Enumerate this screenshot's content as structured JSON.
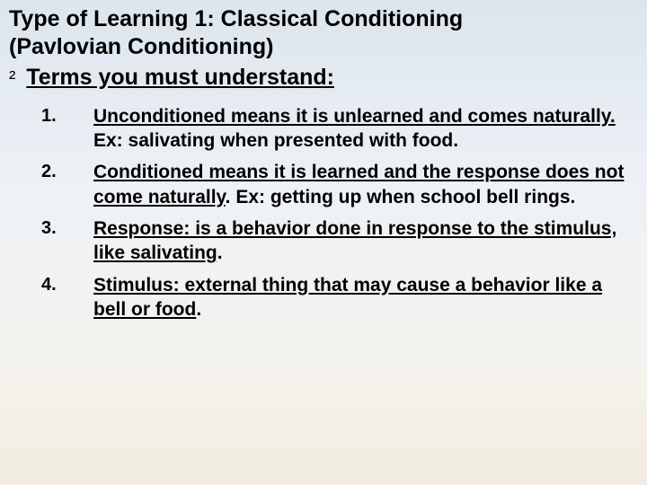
{
  "colors": {
    "bg_top": "#dce5ed",
    "bg_mid": "#eef2f6",
    "bg_low": "#f5f2ec",
    "bg_bottom": "#f2ecdf",
    "text": "#000000"
  },
  "typography": {
    "family": "Arial",
    "title_fontsize_pt": 19,
    "body_fontsize_pt": 16,
    "num_fontsize_pt": 15,
    "weight_title": "bold",
    "weight_body": "bold",
    "line_height": 1.3
  },
  "title_line1": "Type of Learning 1:  Classical Conditioning",
  "title_line2": "(Pavlovian Conditioning)",
  "bullet_glyph": "²",
  "subtitle": "Terms you must understand:",
  "terms": [
    {
      "num": "1.",
      "lead_u": "Unconditioned",
      "rest_u": " means it is unlearned and comes naturally.",
      "tail": "  Ex:  salivating when presented with food."
    },
    {
      "num": "2.",
      "lead_u": "Conditioned",
      "rest_u": " means it is learned and the response does not come naturally",
      "tail": ". Ex: getting up when school bell rings."
    },
    {
      "num": "3.",
      "lead_u": "Response:",
      "rest_u": "  is a behavior done in response to the stimulus, like salivating",
      "tail": "."
    },
    {
      "num": "4.",
      "lead_u": "Stimulus:",
      "rest_u": "  external thing that may cause a behavior like a bell or food",
      "tail": "."
    }
  ]
}
